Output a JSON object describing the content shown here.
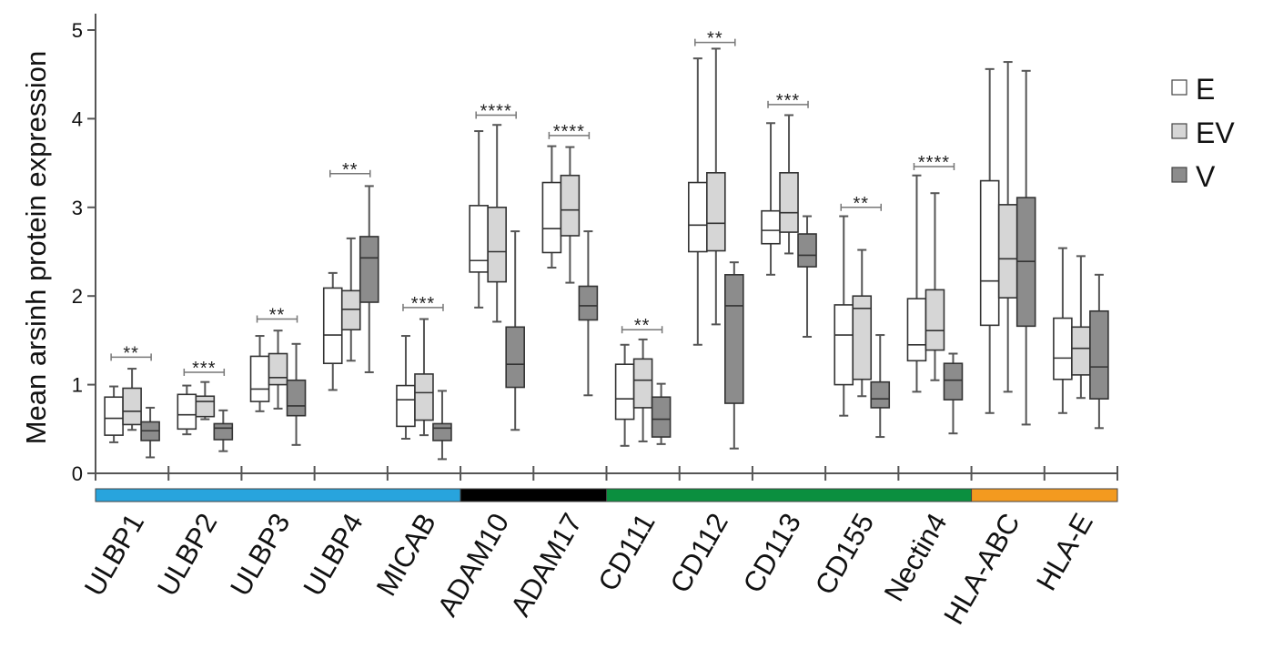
{
  "chart_data": {
    "type": "boxplot",
    "ylabel": "Mean arsinh protein expression",
    "xlabel": "",
    "ylim": [
      0,
      5
    ],
    "yticks": [
      "0",
      "1",
      "2",
      "3",
      "4",
      "5"
    ],
    "grid": false,
    "legend_position": "right",
    "series": [
      {
        "name": "E",
        "color": "#ffffff"
      },
      {
        "name": "EV",
        "color": "#d6d6d6"
      },
      {
        "name": "V",
        "color": "#8c8c8c"
      }
    ],
    "groups": [
      {
        "name": "group-1",
        "color": "#28a4dd",
        "categories": [
          "ULBP1",
          "ULBP2",
          "ULBP3",
          "ULBP4",
          "MICAB"
        ]
      },
      {
        "name": "group-2",
        "color": "#000000",
        "categories": [
          "ADAM10",
          "ADAM17"
        ]
      },
      {
        "name": "group-3",
        "color": "#0b8f3f",
        "categories": [
          "CD111",
          "CD112",
          "CD113",
          "CD155",
          "Nectin4"
        ]
      },
      {
        "name": "group-4",
        "color": "#f39a1f",
        "categories": [
          "HLA-ABC",
          "HLA-E"
        ]
      }
    ],
    "categories": [
      {
        "name": "ULBP1",
        "sig": "**",
        "sig_y": 1.31,
        "boxes": [
          [
            0.35,
            0.43,
            0.62,
            0.86,
            0.98
          ],
          [
            0.49,
            0.55,
            0.7,
            0.96,
            1.18
          ],
          [
            0.18,
            0.37,
            0.48,
            0.58,
            0.74
          ]
        ]
      },
      {
        "name": "ULBP2",
        "sig": "***",
        "sig_y": 1.14,
        "boxes": [
          [
            0.44,
            0.5,
            0.66,
            0.89,
            0.99
          ],
          [
            0.61,
            0.64,
            0.81,
            0.87,
            1.03
          ],
          [
            0.25,
            0.38,
            0.51,
            0.56,
            0.71
          ]
        ]
      },
      {
        "name": "ULBP3",
        "sig": "**",
        "sig_y": 1.74,
        "boxes": [
          [
            0.7,
            0.81,
            0.95,
            1.32,
            1.55
          ],
          [
            0.73,
            1.0,
            1.08,
            1.35,
            1.61
          ],
          [
            0.32,
            0.65,
            0.76,
            1.05,
            1.46
          ]
        ]
      },
      {
        "name": "ULBP4",
        "sig": "**",
        "sig_y": 3.38,
        "boxes": [
          [
            0.94,
            1.24,
            1.56,
            2.09,
            2.26
          ],
          [
            1.27,
            1.62,
            1.85,
            2.06,
            2.65
          ],
          [
            1.14,
            1.93,
            2.43,
            2.67,
            3.24
          ]
        ]
      },
      {
        "name": "MICAB",
        "sig": "***",
        "sig_y": 1.87,
        "boxes": [
          [
            0.39,
            0.53,
            0.83,
            0.99,
            1.55
          ],
          [
            0.43,
            0.6,
            0.91,
            1.12,
            1.74
          ],
          [
            0.16,
            0.37,
            0.51,
            0.56,
            0.93
          ]
        ]
      },
      {
        "name": "ADAM10",
        "sig": "****",
        "sig_y": 4.04,
        "boxes": [
          [
            1.87,
            2.27,
            2.4,
            3.02,
            3.86
          ],
          [
            1.71,
            2.16,
            2.5,
            3.0,
            3.93
          ],
          [
            0.49,
            0.97,
            1.23,
            1.65,
            2.73
          ]
        ]
      },
      {
        "name": "ADAM17",
        "sig": "****",
        "sig_y": 3.81,
        "boxes": [
          [
            2.32,
            2.49,
            2.76,
            3.28,
            3.69
          ],
          [
            2.15,
            2.68,
            2.97,
            3.36,
            3.68
          ],
          [
            0.88,
            1.73,
            1.89,
            2.11,
            2.73
          ]
        ]
      },
      {
        "name": "CD111",
        "sig": "**",
        "sig_y": 1.62,
        "boxes": [
          [
            0.31,
            0.61,
            0.84,
            1.23,
            1.45
          ],
          [
            0.36,
            0.74,
            1.05,
            1.29,
            1.51
          ],
          [
            0.33,
            0.41,
            0.61,
            0.86,
            1.01
          ]
        ]
      },
      {
        "name": "CD112",
        "sig": "**",
        "sig_y": 4.86,
        "boxes": [
          [
            1.45,
            2.5,
            2.8,
            3.28,
            4.68
          ],
          [
            1.68,
            2.51,
            2.82,
            3.39,
            4.79
          ],
          [
            0.28,
            0.79,
            1.89,
            2.24,
            2.38
          ]
        ]
      },
      {
        "name": "CD113",
        "sig": "***",
        "sig_y": 4.16,
        "boxes": [
          [
            2.24,
            2.59,
            2.74,
            2.96,
            3.95
          ],
          [
            2.48,
            2.72,
            2.94,
            3.39,
            4.04
          ],
          [
            1.54,
            2.33,
            2.46,
            2.7,
            2.9
          ]
        ]
      },
      {
        "name": "CD155",
        "sig": "**",
        "sig_y": 3.0,
        "boxes": [
          [
            0.65,
            1.0,
            1.56,
            1.9,
            2.9
          ],
          [
            0.87,
            1.06,
            1.86,
            2.0,
            2.52
          ],
          [
            0.41,
            0.74,
            0.84,
            1.03,
            1.56
          ]
        ]
      },
      {
        "name": "Nectin4",
        "sig": "****",
        "sig_y": 3.46,
        "boxes": [
          [
            0.92,
            1.27,
            1.45,
            1.97,
            3.36
          ],
          [
            1.05,
            1.39,
            1.61,
            2.07,
            3.16
          ],
          [
            0.45,
            0.83,
            1.05,
            1.24,
            1.35
          ]
        ]
      },
      {
        "name": "HLA-ABC",
        "sig": "",
        "sig_y": null,
        "boxes": [
          [
            0.68,
            1.67,
            2.17,
            3.3,
            4.56
          ],
          [
            0.92,
            1.98,
            2.42,
            3.03,
            4.64
          ],
          [
            0.55,
            1.66,
            2.39,
            3.11,
            4.54
          ]
        ]
      },
      {
        "name": "HLA-E",
        "sig": "",
        "sig_y": null,
        "boxes": [
          [
            0.68,
            1.06,
            1.3,
            1.75,
            2.54
          ],
          [
            0.85,
            1.11,
            1.41,
            1.65,
            2.45
          ],
          [
            0.51,
            0.84,
            1.2,
            1.83,
            2.24
          ]
        ]
      }
    ]
  }
}
